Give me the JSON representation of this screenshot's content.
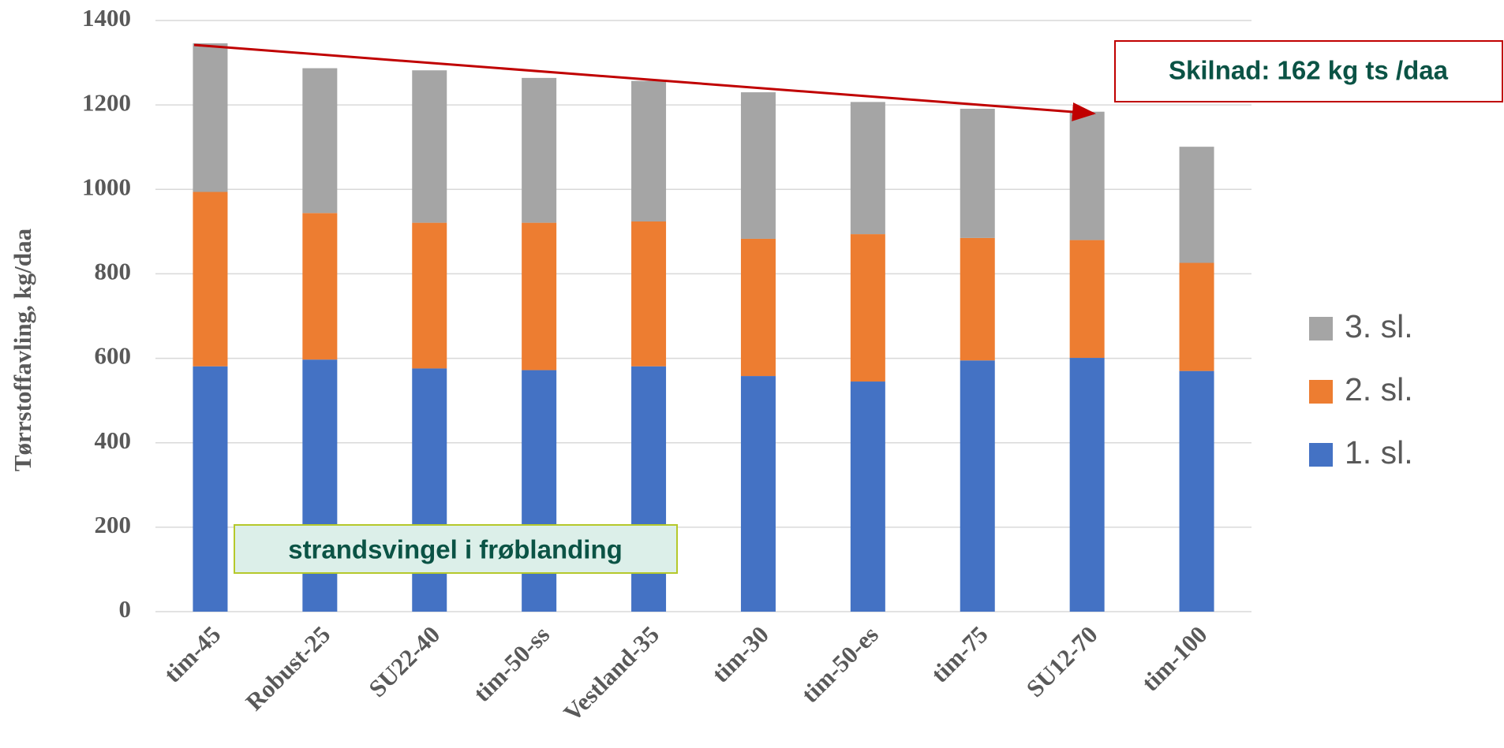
{
  "chart_data": {
    "type": "stacked_bar",
    "y_label": "Tørrstoffavling, kg/daa",
    "categories": [
      "tim-45",
      "Robust-25",
      "SU22-40",
      "tim-50-ss",
      "Vestland-35",
      "tim-30",
      "tim-50-es",
      "tim-75",
      "SU12-70",
      "tim-100"
    ],
    "series": [
      {
        "name": "1. sl.",
        "color": "#4472c4",
        "values": [
          581,
          597,
          576,
          572,
          581,
          558,
          545,
          595,
          601,
          570
        ]
      },
      {
        "name": "2. sl.",
        "color": "#ed7d31",
        "values": [
          413,
          347,
          345,
          349,
          343,
          325,
          349,
          290,
          279,
          256
        ]
      },
      {
        "name": "3. sl.",
        "color": "#a5a5a5",
        "values": [
          352,
          343,
          361,
          343,
          333,
          347,
          313,
          306,
          304,
          275
        ]
      }
    ],
    "ylim": [
      0,
      1400
    ],
    "yticks": [
      0,
      200,
      400,
      600,
      800,
      1000,
      1200,
      1400
    ],
    "grid": true,
    "legend": "right",
    "annotations": [
      "Skilnad: 162 kg ts /daa",
      "strandsvingel i frøblanding"
    ]
  }
}
